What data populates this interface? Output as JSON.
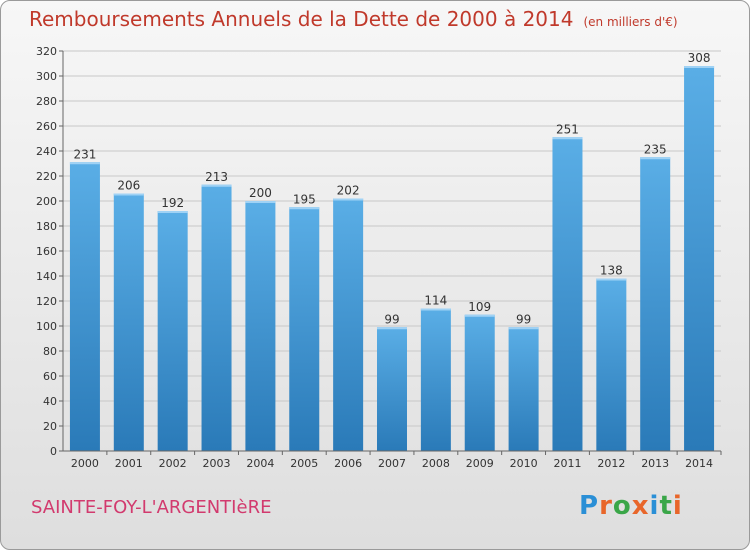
{
  "title": "Remboursements Annuels de la Dette de 2000 à 2014",
  "subtitle": "(en milliers d'€)",
  "city": "SAINTE-FOY-L'ARGENTIèRE",
  "logo": {
    "letters": [
      "P",
      "r",
      "o",
      "x",
      "i",
      "t",
      "i"
    ],
    "colors": [
      "#2a8fd6",
      "#e8662a",
      "#3aa648",
      "#e8662a",
      "#2a8fd6",
      "#3aa648",
      "#e8662a"
    ]
  },
  "colors": {
    "bar_top": "#5aaee6",
    "bar_bottom": "#2a7ab8",
    "title": "#c0392b",
    "city": "#d23a6e"
  },
  "chart_data": {
    "type": "bar",
    "title": "Remboursements Annuels de la Dette de 2000 à 2014",
    "ylabel": "",
    "xlabel": "",
    "ylim": [
      0,
      320
    ],
    "yticks": [
      0,
      20,
      40,
      60,
      80,
      100,
      120,
      140,
      160,
      180,
      200,
      220,
      240,
      260,
      280,
      300,
      320
    ],
    "grid": true,
    "categories": [
      "2000",
      "2001",
      "2002",
      "2003",
      "2004",
      "2005",
      "2006",
      "2007",
      "2008",
      "2009",
      "2010",
      "2011",
      "2012",
      "2013",
      "2014"
    ],
    "values": [
      231,
      206,
      192,
      213,
      200,
      195,
      202,
      99,
      114,
      109,
      99,
      251,
      138,
      235,
      308
    ]
  }
}
